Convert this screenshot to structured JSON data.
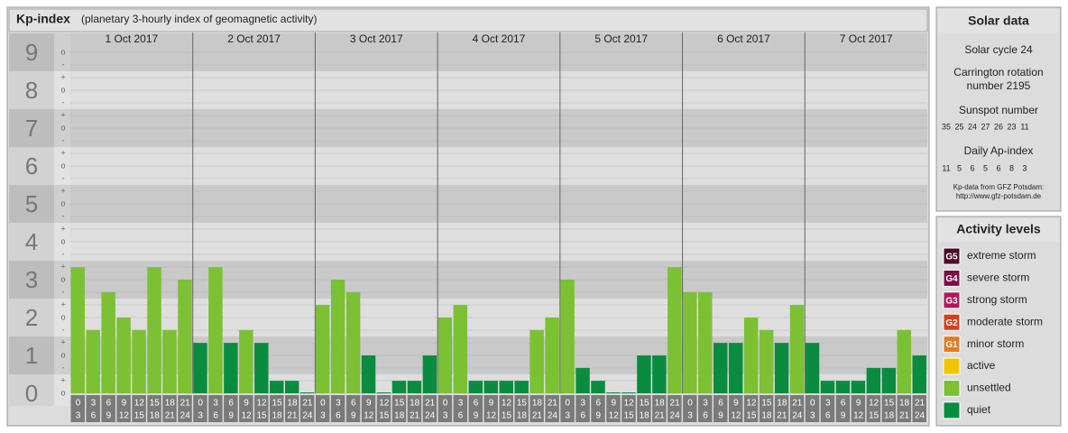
{
  "header": {
    "title": "Kp-index",
    "subtitle": "(planetary 3-hourly index of geomagnetic activity)"
  },
  "chart_data": {
    "type": "bar",
    "ylim": [
      0,
      9.5
    ],
    "yticks": [
      0,
      1,
      2,
      3,
      4,
      5,
      6,
      7,
      8,
      9
    ],
    "minor_labels": [
      "-",
      "o",
      "+"
    ],
    "slots": [
      [
        "0",
        "3"
      ],
      [
        "3",
        "6"
      ],
      [
        "6",
        "9"
      ],
      [
        "9",
        "12"
      ],
      [
        "12",
        "15"
      ],
      [
        "15",
        "18"
      ],
      [
        "18",
        "21"
      ],
      [
        "21",
        "24"
      ]
    ],
    "days": [
      {
        "label": "1 Oct 2017",
        "values": [
          3.33,
          1.67,
          2.67,
          2,
          1.67,
          3.33,
          1.67,
          3
        ],
        "colors": [
          "#7cc034",
          "#7cc034",
          "#7cc034",
          "#7cc034",
          "#7cc034",
          "#7cc034",
          "#7cc034",
          "#7cc034"
        ]
      },
      {
        "label": "2 Oct 2017",
        "values": [
          1.33,
          3.33,
          1.33,
          1.67,
          1.33,
          0.33,
          0.33,
          0
        ],
        "colors": [
          "#0a8c40",
          "#7cc034",
          "#0a8c40",
          "#7cc034",
          "#0a8c40",
          "#0a8c40",
          "#0a8c40",
          "#0a8c40"
        ]
      },
      {
        "label": "3 Oct 2017",
        "values": [
          2.33,
          3,
          2.67,
          1,
          0,
          0.33,
          0.33,
          1
        ],
        "colors": [
          "#7cc034",
          "#7cc034",
          "#7cc034",
          "#0a8c40",
          "#0a8c40",
          "#0a8c40",
          "#0a8c40",
          "#0a8c40"
        ]
      },
      {
        "label": "4 Oct 2017",
        "values": [
          2,
          2.33,
          0.33,
          0.33,
          0.33,
          0.33,
          1.67,
          2
        ],
        "colors": [
          "#7cc034",
          "#7cc034",
          "#0a8c40",
          "#0a8c40",
          "#0a8c40",
          "#0a8c40",
          "#7cc034",
          "#7cc034"
        ]
      },
      {
        "label": "5 Oct 2017",
        "values": [
          3,
          0.67,
          0.33,
          0,
          0,
          1,
          1,
          3.33
        ],
        "colors": [
          "#7cc034",
          "#0a8c40",
          "#0a8c40",
          "#0a8c40",
          "#0a8c40",
          "#0a8c40",
          "#0a8c40",
          "#7cc034"
        ]
      },
      {
        "label": "6 Oct 2017",
        "values": [
          2.67,
          2.67,
          1.33,
          1.33,
          2,
          1.67,
          1.33,
          2.33
        ],
        "colors": [
          "#7cc034",
          "#7cc034",
          "#0a8c40",
          "#0a8c40",
          "#7cc034",
          "#7cc034",
          "#0a8c40",
          "#7cc034"
        ]
      },
      {
        "label": "7 Oct 2017",
        "values": [
          1.33,
          0.33,
          0.33,
          0.33,
          0.67,
          0.67,
          1.67,
          1
        ],
        "colors": [
          "#0a8c40",
          "#0a8c40",
          "#0a8c40",
          "#0a8c40",
          "#0a8c40",
          "#0a8c40",
          "#7cc034",
          "#0a8c40"
        ]
      }
    ]
  },
  "solar": {
    "title": "Solar data",
    "cycle": "Solar cycle 24",
    "carrington": [
      "Carrington rotation",
      "number 2195"
    ],
    "sunspot_title": "Sunspot number",
    "sunspot": [
      35,
      25,
      24,
      27,
      26,
      23,
      11
    ],
    "ap_title": "Daily Ap-index",
    "ap": [
      11,
      5,
      6,
      5,
      6,
      8,
      3
    ],
    "source": [
      "Kp-data from GFZ Potsdam:",
      "http://www.gfz-potsdam.de"
    ]
  },
  "activity": {
    "title": "Activity levels",
    "items": [
      {
        "code": "G5",
        "label": "extreme storm",
        "color": "#4a0a24"
      },
      {
        "code": "G4",
        "label": "severe storm",
        "color": "#7a0f45"
      },
      {
        "code": "G3",
        "label": "strong storm",
        "color": "#b0195a"
      },
      {
        "code": "G2",
        "label": "moderate storm",
        "color": "#d0401e"
      },
      {
        "code": "G1",
        "label": "minor storm",
        "color": "#e57a1e"
      },
      {
        "label": "active",
        "color": "#f5c400"
      },
      {
        "label": "unsettled",
        "color": "#7cc034"
      },
      {
        "label": "quiet",
        "color": "#0a8c40"
      }
    ]
  }
}
